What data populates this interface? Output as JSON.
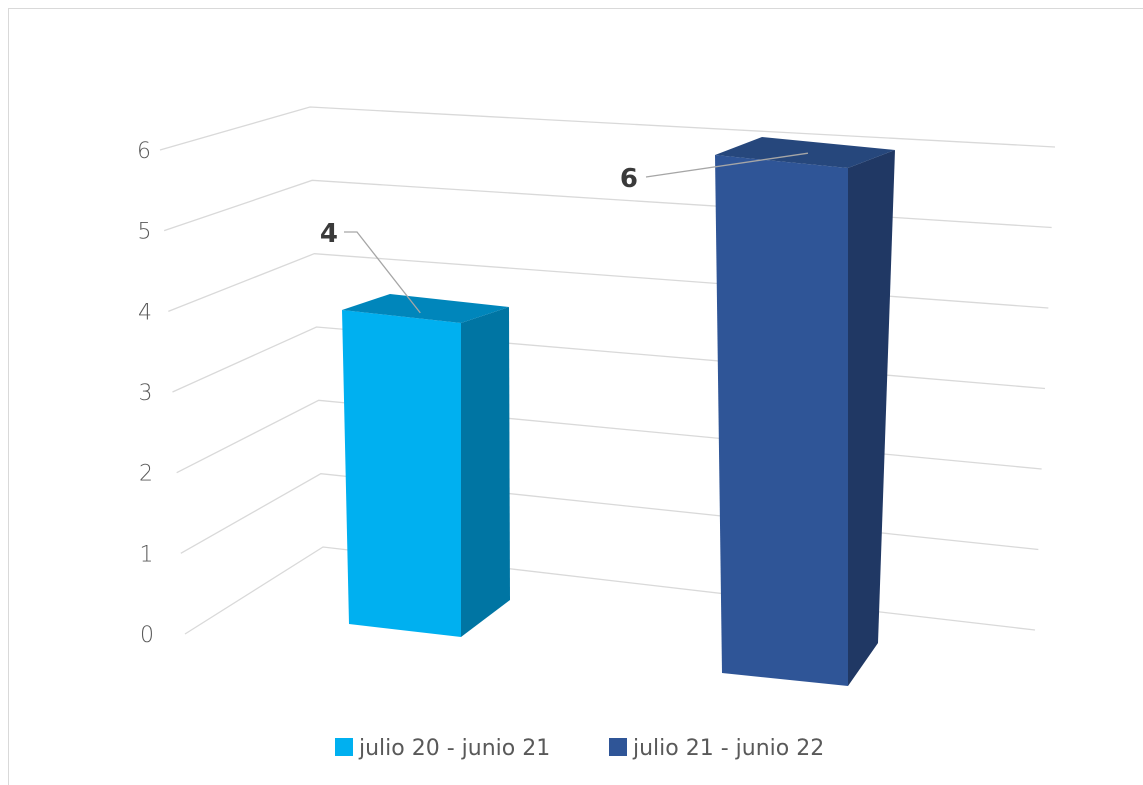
{
  "chart_data": {
    "type": "bar",
    "title": "",
    "categories": [
      "julio 20 - junio 21",
      "julio 21 - junio 22"
    ],
    "values": [
      4,
      6
    ],
    "data_labels": [
      "4",
      "6"
    ],
    "colors": [
      "#00b0f0",
      "#2f5597"
    ],
    "ylim": [
      0,
      6
    ],
    "y_ticks": [
      "0",
      "1",
      "2",
      "3",
      "4",
      "5",
      "6"
    ],
    "grid": true,
    "legend_position": "bottom",
    "style": "3d-perspective"
  }
}
